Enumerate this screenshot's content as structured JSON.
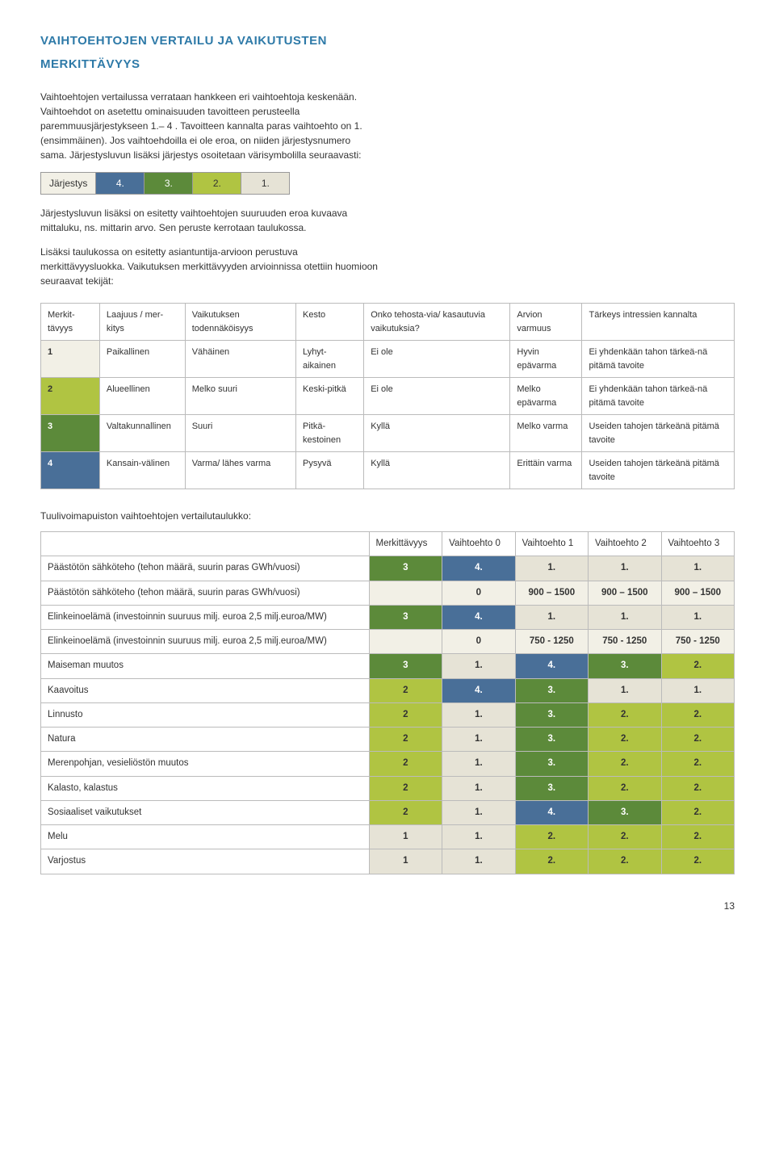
{
  "heading1": "VAIHTOEHTOJEN VERTAILU JA VAIKUTUSTEN",
  "heading2": "MERKITTÄVYYS",
  "intro_p1": "Vaihtoehtojen vertailussa verrataan hankkeen eri vaihtoehtoja keskenään. Vaihtoehdot on asetettu ominaisuuden tavoitteen perusteella paremmuusjärjestykseen 1.– 4 . Tavoitteen kannalta paras vaihtoehto on 1. (ensimmäinen). Jos vaihtoehdoilla ei ole eroa, on niiden järjestysnumero sama. Järjestysluvun lisäksi järjestys osoitetaan värisymbolilla seuraavasti:",
  "jarjestys": {
    "label": "Järjestys",
    "v4": "4.",
    "v3": "3.",
    "v2": "2.",
    "v1": "1."
  },
  "intro_p2": "Järjestysluvun lisäksi on esitetty vaihtoehtojen suuruuden eroa kuvaava mittaluku, ns. mittarin arvo. Sen peruste kerrotaan taulukossa.",
  "intro_p3": "Lisäksi taulukossa on esitetty asiantuntija-arvioon perustuva merkittävyysluokka. Vaikutuksen merkittävyyden arvioinnissa otettiin huomioon seuraavat tekijät:",
  "merkit": {
    "headers": [
      "Merkit-tävyys",
      "Laajuus / mer-kitys",
      "Vaikutuksen todennäköisyys",
      "Kesto",
      "Onko tehosta-via/ kasautuvia vaikutuksia?",
      "Arvion varmuus",
      "Tärkeys intressien kannalta"
    ],
    "rows": [
      [
        "1",
        "Paikallinen",
        "Vähäinen",
        "Lyhyt-aikainen",
        "Ei ole",
        "Hyvin epävarma",
        "Ei yhdenkään tahon tärkeä-nä pitämä tavoite"
      ],
      [
        "2",
        "Alueellinen",
        "Melko suuri",
        "Keski-pitkä",
        "Ei ole",
        "Melko epävarma",
        "Ei yhdenkään tahon tärkeä-nä pitämä tavoite"
      ],
      [
        "3",
        "Valtakunnallinen",
        "Suuri",
        "Pitkä-kestoinen",
        "Kyllä",
        "Melko varma",
        "Useiden tahojen tärkeänä pitämä tavoite"
      ],
      [
        "4",
        "Kansain-välinen",
        "Varma/ lähes varma",
        "Pysyvä",
        "Kyllä",
        "Erittäin varma",
        "Useiden tahojen tärkeänä pitämä tavoite"
      ]
    ]
  },
  "sub_title": "Tuulivoimapuiston vaihtoehtojen vertailutaulukko:",
  "vertailu": {
    "headers": [
      "",
      "Merkittävyys",
      "Vaihtoehto 0",
      "Vaihtoehto 1",
      "Vaihtoehto 2",
      "Vaihtoehto 3"
    ],
    "rows": [
      {
        "label": "Päästötön sähköteho (tehon määrä, suurin paras GWh/vuosi)",
        "merk": "3",
        "v": [
          "4.",
          "1.",
          "1.",
          "1."
        ],
        "cls": [
          "c4",
          "c1",
          "c1",
          "c1"
        ]
      },
      {
        "label": "Päästötön sähköteho (tehon määrä, suurin paras GWh/vuosi)",
        "merk": "",
        "v": [
          "0",
          "900 – 1500",
          "900 – 1500",
          "900 – 1500"
        ],
        "cls": [
          "c0",
          "c0",
          "c0",
          "c0"
        ]
      },
      {
        "label": "Elinkeinoelämä (investoinnin suuruus milj. euroa 2,5 milj.euroa/MW)",
        "merk": "3",
        "v": [
          "4.",
          "1.",
          "1.",
          "1."
        ],
        "cls": [
          "c4",
          "c1",
          "c1",
          "c1"
        ]
      },
      {
        "label": "Elinkeinoelämä (investoinnin suuruus milj. euroa 2,5 milj.euroa/MW)",
        "merk": "",
        "v": [
          "0",
          "750 - 1250",
          "750 - 1250",
          "750 - 1250"
        ],
        "cls": [
          "c0",
          "c0",
          "c0",
          "c0"
        ]
      },
      {
        "label": "Maiseman muutos",
        "merk": "3",
        "v": [
          "1.",
          "4.",
          "3.",
          "2."
        ],
        "cls": [
          "c1",
          "c4",
          "c3",
          "c2"
        ]
      },
      {
        "label": "Kaavoitus",
        "merk": "2",
        "v": [
          "4.",
          "3.",
          "1.",
          "1."
        ],
        "cls": [
          "c4",
          "c3",
          "c1",
          "c1"
        ]
      },
      {
        "label": "Linnusto",
        "merk": "2",
        "v": [
          "1.",
          "3.",
          "2.",
          "2."
        ],
        "cls": [
          "c1",
          "c3",
          "c2",
          "c2"
        ]
      },
      {
        "label": "Natura",
        "merk": "2",
        "v": [
          "1.",
          "3.",
          "2.",
          "2."
        ],
        "cls": [
          "c1",
          "c3",
          "c2",
          "c2"
        ]
      },
      {
        "label": "Merenpohjan, vesieliöstön muutos",
        "merk": "2",
        "v": [
          "1.",
          "3.",
          "2.",
          "2."
        ],
        "cls": [
          "c1",
          "c3",
          "c2",
          "c2"
        ]
      },
      {
        "label": "Kalasto, kalastus",
        "merk": "2",
        "v": [
          "1.",
          "3.",
          "2.",
          "2."
        ],
        "cls": [
          "c1",
          "c3",
          "c2",
          "c2"
        ]
      },
      {
        "label": "Sosiaaliset vaikutukset",
        "merk": "2",
        "v": [
          "1.",
          "4.",
          "3.",
          "2."
        ],
        "cls": [
          "c1",
          "c4",
          "c3",
          "c2"
        ]
      },
      {
        "label": "Melu",
        "merk": "1",
        "v": [
          "1.",
          "2.",
          "2.",
          "2."
        ],
        "cls": [
          "c1",
          "c2",
          "c2",
          "c2"
        ]
      },
      {
        "label": "Varjostus",
        "merk": "1",
        "v": [
          "1.",
          "2.",
          "2.",
          "2."
        ],
        "cls": [
          "c1",
          "c2",
          "c2",
          "c2"
        ]
      }
    ]
  },
  "page_number": "13",
  "merk_cell_classes": {
    "1": "c1",
    "2": "c2",
    "3": "c3",
    "": "c0"
  }
}
